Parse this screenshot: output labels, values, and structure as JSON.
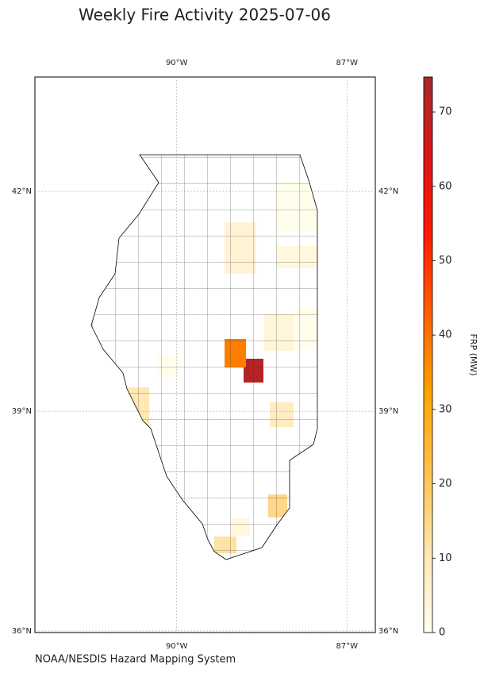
{
  "title": "Weekly Fire Activity 2025-07-06",
  "credit": "NOAA/NESDIS Hazard Mapping System",
  "map": {
    "xlim": [
      -92.5,
      -86.5
    ],
    "ylim": [
      35.98,
      43.56
    ],
    "xticks": [
      {
        "value": -90,
        "label": "90°W"
      },
      {
        "value": -87,
        "label": "87°W"
      }
    ],
    "yticks": [
      {
        "value": 42,
        "label": "42°N"
      },
      {
        "value": 39,
        "label": "39°N"
      },
      {
        "value": 36,
        "label": "36°N"
      }
    ],
    "grid": true
  },
  "colorbar": {
    "label": "FRP (MW)",
    "lim": [
      0,
      74.7
    ],
    "ticks": [
      0,
      10,
      20,
      30,
      40,
      50,
      60,
      70
    ],
    "colormap": [
      "#fffff2",
      "#ffe6b0",
      "#ffc250",
      "#ffa500",
      "#ff6000",
      "#ff1a00",
      "#dd1515",
      "#a52a2a"
    ]
  },
  "fire_counties": {
    "values": [
      72,
      38,
      15,
      10,
      12,
      8,
      5,
      3,
      3,
      4,
      1,
      1,
      1
    ]
  }
}
